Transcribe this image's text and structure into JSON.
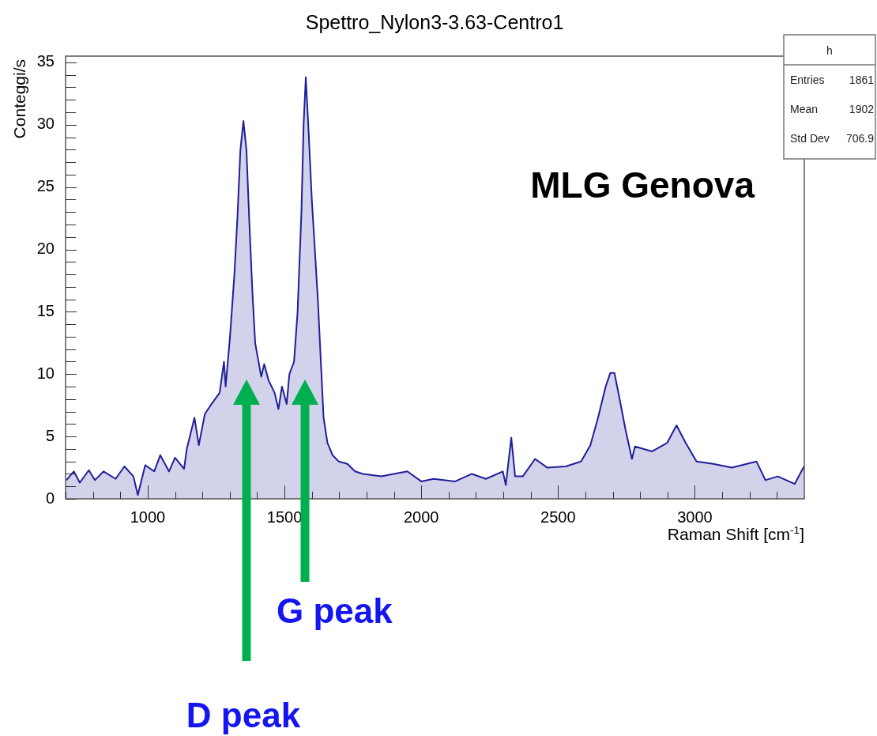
{
  "chart_data": {
    "type": "area",
    "title": "Spettro_Nylon3-3.63-Centro1",
    "xlabel": "Raman Shift [cm$^{-1}$]",
    "ylabel": "Conteggi/s",
    "annotations": [
      "MLG Genova",
      "h",
      "Entries",
      "1861",
      "Mean",
      "1902",
      "Std Dev",
      "706.9",
      "D peak",
      "G peak"
    ],
    "series": [
      {
        "color": "#1f1f99",
        "x": [
          703,
          730,
          752,
          785,
          807,
          839,
          883,
          915,
          948,
          964,
          991,
          1024,
          1046,
          1078,
          1100,
          1133,
          1143,
          1171,
          1187,
          1209,
          1230,
          1263,
          1279,
          1285,
          1301,
          1317,
          1328,
          1339,
          1350,
          1361,
          1372,
          1383,
          1393,
          1415,
          1426,
          1442,
          1464,
          1478,
          1491,
          1508,
          1518,
          1535,
          1548,
          1562,
          1570,
          1578,
          1587,
          1600,
          1611,
          1622,
          1633,
          1643,
          1657,
          1676,
          1698,
          1730,
          1758,
          1787,
          1854,
          1949,
          2000,
          2045,
          2124,
          2185,
          2236,
          2298,
          2309,
          2329,
          2343,
          2371,
          2416,
          2461,
          2528,
          2584,
          2618,
          2646,
          2674,
          2691,
          2706,
          2725,
          2747,
          2770,
          2781,
          2843,
          2899,
          2933,
          2966,
          3006,
          3067,
          3135,
          3225,
          3258,
          3303,
          3365,
          3399
        ],
        "values": [
          1.5,
          2.2,
          1.3,
          2.3,
          1.5,
          2.2,
          1.6,
          2.6,
          1.8,
          0.3,
          2.7,
          2.2,
          3.5,
          2.2,
          3.3,
          2.4,
          4.0,
          6.5,
          4.3,
          6.8,
          7.5,
          8.5,
          11,
          9,
          13,
          18,
          22.5,
          28,
          30.3,
          28,
          22,
          16.5,
          12.5,
          9.8,
          10.8,
          9.5,
          8.5,
          7.2,
          9.0,
          7.6,
          10,
          11,
          15,
          23,
          30,
          33.8,
          30,
          24,
          20,
          16,
          11,
          6.5,
          4.5,
          3.5,
          3.0,
          2.8,
          2.2,
          2.0,
          1.8,
          2.2,
          1.4,
          1.6,
          1.4,
          2.0,
          1.6,
          2.2,
          1.1,
          4.9,
          1.8,
          1.8,
          3.2,
          2.5,
          2.6,
          3.0,
          4.3,
          6.5,
          9.0,
          10.1,
          10.1,
          8.0,
          5.5,
          3.2,
          4.2,
          3.8,
          4.5,
          5.9,
          4.5,
          3.0,
          2.8,
          2.5,
          3.0,
          1.5,
          1.8,
          1.2,
          2.6
        ]
      }
    ],
    "xlim": [
      700,
      3400
    ],
    "ylim": [
      0,
      35.5
    ],
    "xticks": [
      {
        "value": 700,
        "label": null
      },
      {
        "value": 800,
        "label": null
      },
      {
        "value": 900,
        "label": null
      },
      1000,
      {
        "value": 1100,
        "label": null
      },
      {
        "value": 1200,
        "label": null
      },
      {
        "value": 1300,
        "label": null
      },
      {
        "value": 1400,
        "label": null
      },
      1500,
      {
        "value": 1600,
        "label": null
      },
      {
        "value": 1700,
        "label": null
      },
      {
        "value": 1800,
        "label": null
      },
      {
        "value": 1900,
        "label": null
      },
      2000,
      {
        "value": 2100,
        "label": null
      },
      {
        "value": 2200,
        "label": null
      },
      {
        "value": 2300,
        "label": null
      },
      {
        "value": 2400,
        "label": null
      },
      2500,
      {
        "value": 2600,
        "label": null
      },
      {
        "value": 2700,
        "label": null
      },
      {
        "value": 2800,
        "label": null
      },
      {
        "value": 2900,
        "label": null
      },
      3000,
      {
        "value": 3100,
        "label": null
      },
      {
        "value": 3200,
        "label": null
      },
      {
        "value": 3300,
        "label": null
      }
    ],
    "yticks": [
      0,
      {
        "value": 1,
        "label": null
      },
      {
        "value": 2,
        "label": null
      },
      {
        "value": 3,
        "label": null
      },
      {
        "value": 4,
        "label": null
      },
      5,
      {
        "value": 6,
        "label": null
      },
      {
        "value": 7,
        "label": null
      },
      {
        "value": 8,
        "label": null
      },
      {
        "value": 9,
        "label": null
      },
      10,
      {
        "value": 11,
        "label": null
      },
      {
        "value": 12,
        "label": null
      },
      {
        "value": 13,
        "label": null
      },
      {
        "value": 14,
        "label": null
      },
      15,
      {
        "value": 16,
        "label": null
      },
      {
        "value": 17,
        "label": null
      },
      {
        "value": 18,
        "label": null
      },
      {
        "value": 19,
        "label": null
      },
      20,
      {
        "value": 21,
        "label": null
      },
      {
        "value": 22,
        "label": null
      },
      {
        "value": 23,
        "label": null
      },
      {
        "value": 24,
        "label": null
      },
      25,
      {
        "value": 26,
        "label": null
      },
      {
        "value": 27,
        "label": null
      },
      {
        "value": 28,
        "label": null
      },
      {
        "value": 29,
        "label": null
      },
      30,
      {
        "value": 31,
        "label": null
      },
      {
        "value": 32,
        "label": null
      },
      {
        "value": 33,
        "label": null
      },
      {
        "value": 34,
        "label": null
      },
      35
    ],
    "grid": false,
    "legend": false,
    "marker": "none",
    "line_style": "solid"
  }
}
